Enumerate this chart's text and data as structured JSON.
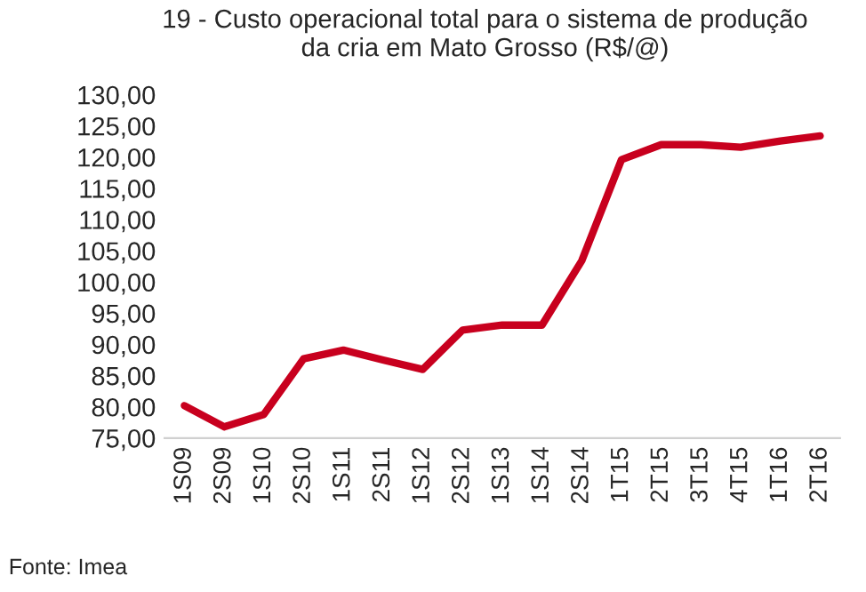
{
  "chart_data": {
    "type": "line",
    "title": "19 - Custo operacional total para o sistema de produção\nda cria em Mato Grosso (R$/@)",
    "categories": [
      "1S09",
      "2S09",
      "1S10",
      "2S10",
      "1S11",
      "2S11",
      "1S12",
      "2S12",
      "1S13",
      "1S14",
      "2S14",
      "1T15",
      "2T15",
      "3T15",
      "4T15",
      "1T16",
      "2T16"
    ],
    "series": [
      {
        "color": "#c8001e",
        "values": [
          80.2,
          76.8,
          78.8,
          87.7,
          89.1,
          87.5,
          86.0,
          92.3,
          93.1,
          93.1,
          103.4,
          119.6,
          122.0,
          122.0,
          121.6,
          122.6,
          123.4
        ]
      }
    ],
    "ylim": [
      75,
      130
    ],
    "yticks": [
      {
        "value": 75,
        "label": "75,00"
      },
      {
        "value": 80,
        "label": "80,00"
      },
      {
        "value": 85,
        "label": "85,00"
      },
      {
        "value": 90,
        "label": "90,00"
      },
      {
        "value": 95,
        "label": "95,00"
      },
      {
        "value": 100,
        "label": "100,00"
      },
      {
        "value": 105,
        "label": "105,00"
      },
      {
        "value": 110,
        "label": "110,00"
      },
      {
        "value": 115,
        "label": "115,00"
      },
      {
        "value": 120,
        "label": "120,00"
      },
      {
        "value": 125,
        "label": "125,00"
      },
      {
        "value": 130,
        "label": "130,00"
      }
    ],
    "grid": false,
    "marker": "none",
    "line_style": "solid",
    "annotations": [
      "Fonte: Imea"
    ]
  }
}
